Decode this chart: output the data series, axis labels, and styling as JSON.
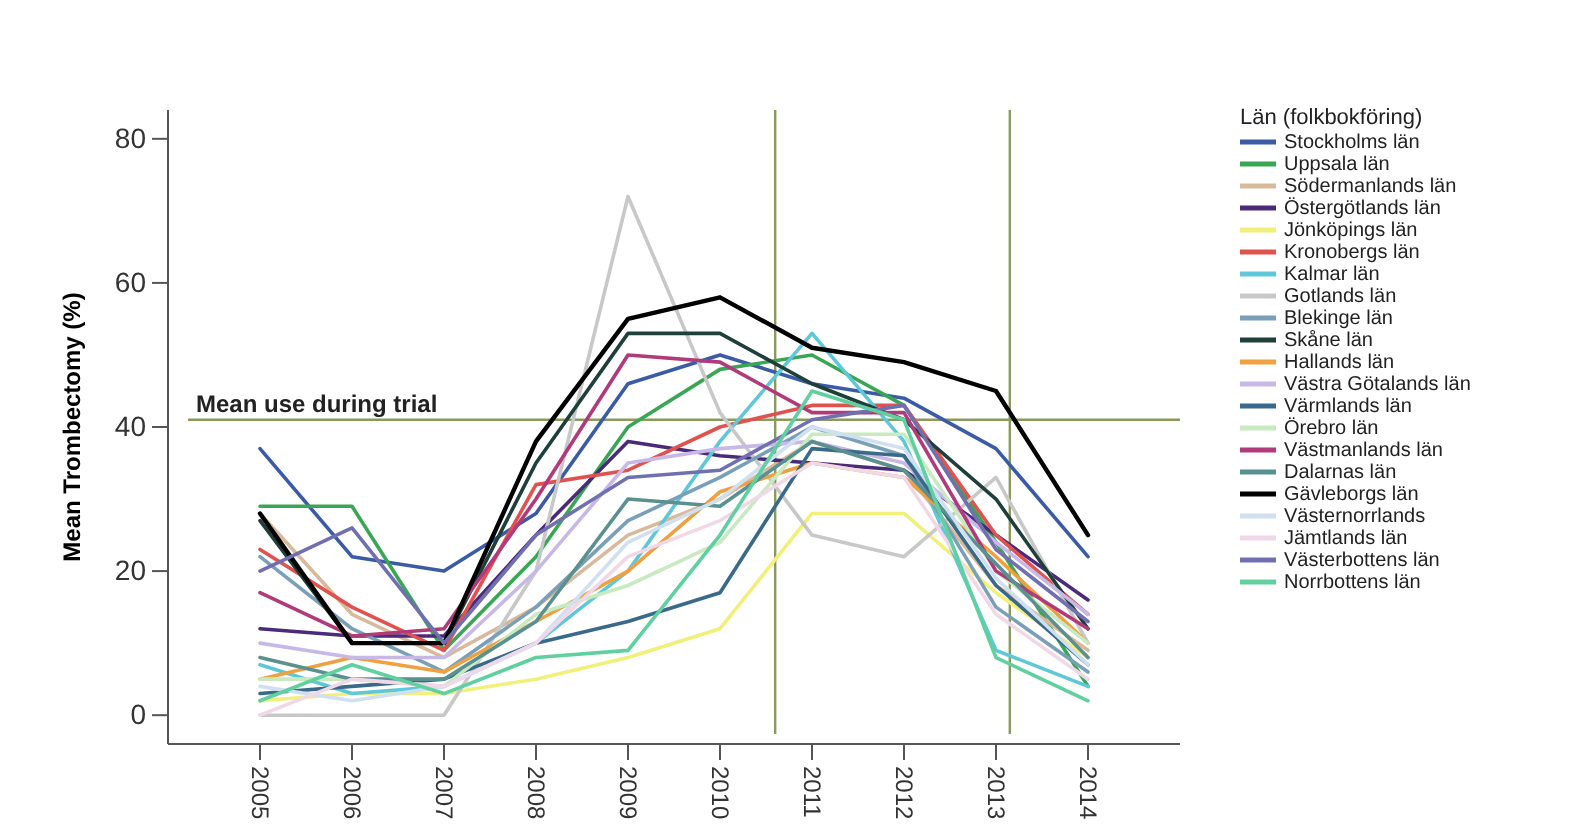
{
  "chart_data": {
    "type": "line",
    "ylabel": "Mean Trombectomy (%)",
    "legend_title": "Län (folkbokföring)",
    "legend": "right",
    "grid": false,
    "marker": "none",
    "line_style": "solid",
    "x": [
      2005,
      2006,
      2007,
      2008,
      2009,
      2010,
      2011,
      2012,
      2013,
      2014
    ],
    "xlim": [
      2004,
      2015
    ],
    "xticks": [
      2005,
      2006,
      2007,
      2008,
      2009,
      2010,
      2011,
      2012,
      2013,
      2014
    ],
    "ylim": [
      -4,
      84
    ],
    "yticks": [
      0,
      20,
      40,
      60,
      80
    ],
    "ref_lines": [
      {
        "axis": "y",
        "value": 41,
        "label": "Mean use during trial",
        "color": "#8a9a5b"
      },
      {
        "axis": "x",
        "value": 2010.6,
        "label": null,
        "color": "#8a9a5b"
      },
      {
        "axis": "x",
        "value": 2013.15,
        "label": null,
        "color": "#8a9a5b"
      }
    ],
    "series": [
      {
        "name": "Stockholms län",
        "color": "#3b5ba5",
        "values": [
          37,
          22,
          20,
          28,
          46,
          50,
          46,
          44,
          37,
          22
        ]
      },
      {
        "name": "Uppsala län",
        "color": "#3aa655",
        "values": [
          29,
          29,
          9,
          22,
          40,
          48,
          50,
          43,
          24,
          4
        ]
      },
      {
        "name": "Södermanlands län",
        "color": "#d9b99b",
        "values": [
          28,
          14,
          8,
          15,
          25,
          30,
          38,
          34,
          18,
          9
        ]
      },
      {
        "name": "Östergötlands län",
        "color": "#4b2a7a",
        "values": [
          12,
          11,
          11,
          25,
          38,
          36,
          35,
          34,
          25,
          16
        ]
      },
      {
        "name": "Jönköpings län",
        "color": "#f0f07a",
        "values": [
          2,
          3,
          3,
          5,
          8,
          12,
          28,
          28,
          17,
          8
        ]
      },
      {
        "name": "Kronobergs län",
        "color": "#e0524e",
        "values": [
          23,
          15,
          9,
          32,
          34,
          40,
          43,
          43,
          25,
          14
        ]
      },
      {
        "name": "Kalmar län",
        "color": "#5ec8d8",
        "values": [
          7,
          3,
          4,
          10,
          20,
          38,
          53,
          38,
          9,
          4
        ]
      },
      {
        "name": "Gotlands län",
        "color": "#c8c8c8",
        "values": [
          0,
          0,
          0,
          20,
          72,
          42,
          25,
          22,
          33,
          10
        ]
      },
      {
        "name": "Blekinge län",
        "color": "#7aa0b8",
        "values": [
          22,
          12,
          6,
          15,
          27,
          33,
          40,
          36,
          15,
          6
        ]
      },
      {
        "name": "Skåne län",
        "color": "#1e3f3a",
        "values": [
          27,
          10,
          10,
          35,
          53,
          53,
          46,
          41,
          30,
          12
        ]
      },
      {
        "name": "Hallands län",
        "color": "#f0a040",
        "values": [
          5,
          8,
          6,
          13,
          20,
          31,
          35,
          33,
          22,
          10
        ]
      },
      {
        "name": "Västra Götalands län",
        "color": "#c8b8e8",
        "values": [
          10,
          8,
          8,
          20,
          35,
          37,
          38,
          35,
          24,
          14
        ]
      },
      {
        "name": "Värmlands län",
        "color": "#3a6a8a",
        "values": [
          3,
          4,
          5,
          10,
          13,
          17,
          37,
          36,
          18,
          7
        ]
      },
      {
        "name": "Örebro län",
        "color": "#c8eac0",
        "values": [
          5,
          5,
          4,
          14,
          18,
          24,
          39,
          39,
          20,
          10
        ]
      },
      {
        "name": "Västmanlands län",
        "color": "#b03a7a",
        "values": [
          17,
          11,
          12,
          30,
          50,
          49,
          42,
          42,
          20,
          12
        ]
      },
      {
        "name": "Dalarnas län",
        "color": "#5a9090",
        "values": [
          8,
          5,
          5,
          13,
          30,
          29,
          38,
          34,
          21,
          8
        ]
      },
      {
        "name": "Gävleborgs län",
        "color": "#000000",
        "values": [
          28,
          10,
          10,
          38,
          55,
          58,
          51,
          49,
          45,
          25
        ]
      },
      {
        "name": "Västernorrlands",
        "color": "#d0e0f0",
        "values": [
          4,
          2,
          4,
          10,
          24,
          30,
          40,
          37,
          19,
          7
        ]
      },
      {
        "name": "Jämtlands län",
        "color": "#f0d8e8",
        "values": [
          0,
          5,
          4,
          10,
          22,
          27,
          35,
          33,
          14,
          5
        ]
      },
      {
        "name": "Västerbottens län",
        "color": "#7070b0",
        "values": [
          20,
          26,
          10,
          25,
          33,
          34,
          41,
          43,
          23,
          13
        ]
      },
      {
        "name": "Norrbottens län",
        "color": "#60d0a0",
        "values": [
          2,
          7,
          3,
          8,
          9,
          25,
          45,
          41,
          8,
          2
        ]
      }
    ]
  }
}
